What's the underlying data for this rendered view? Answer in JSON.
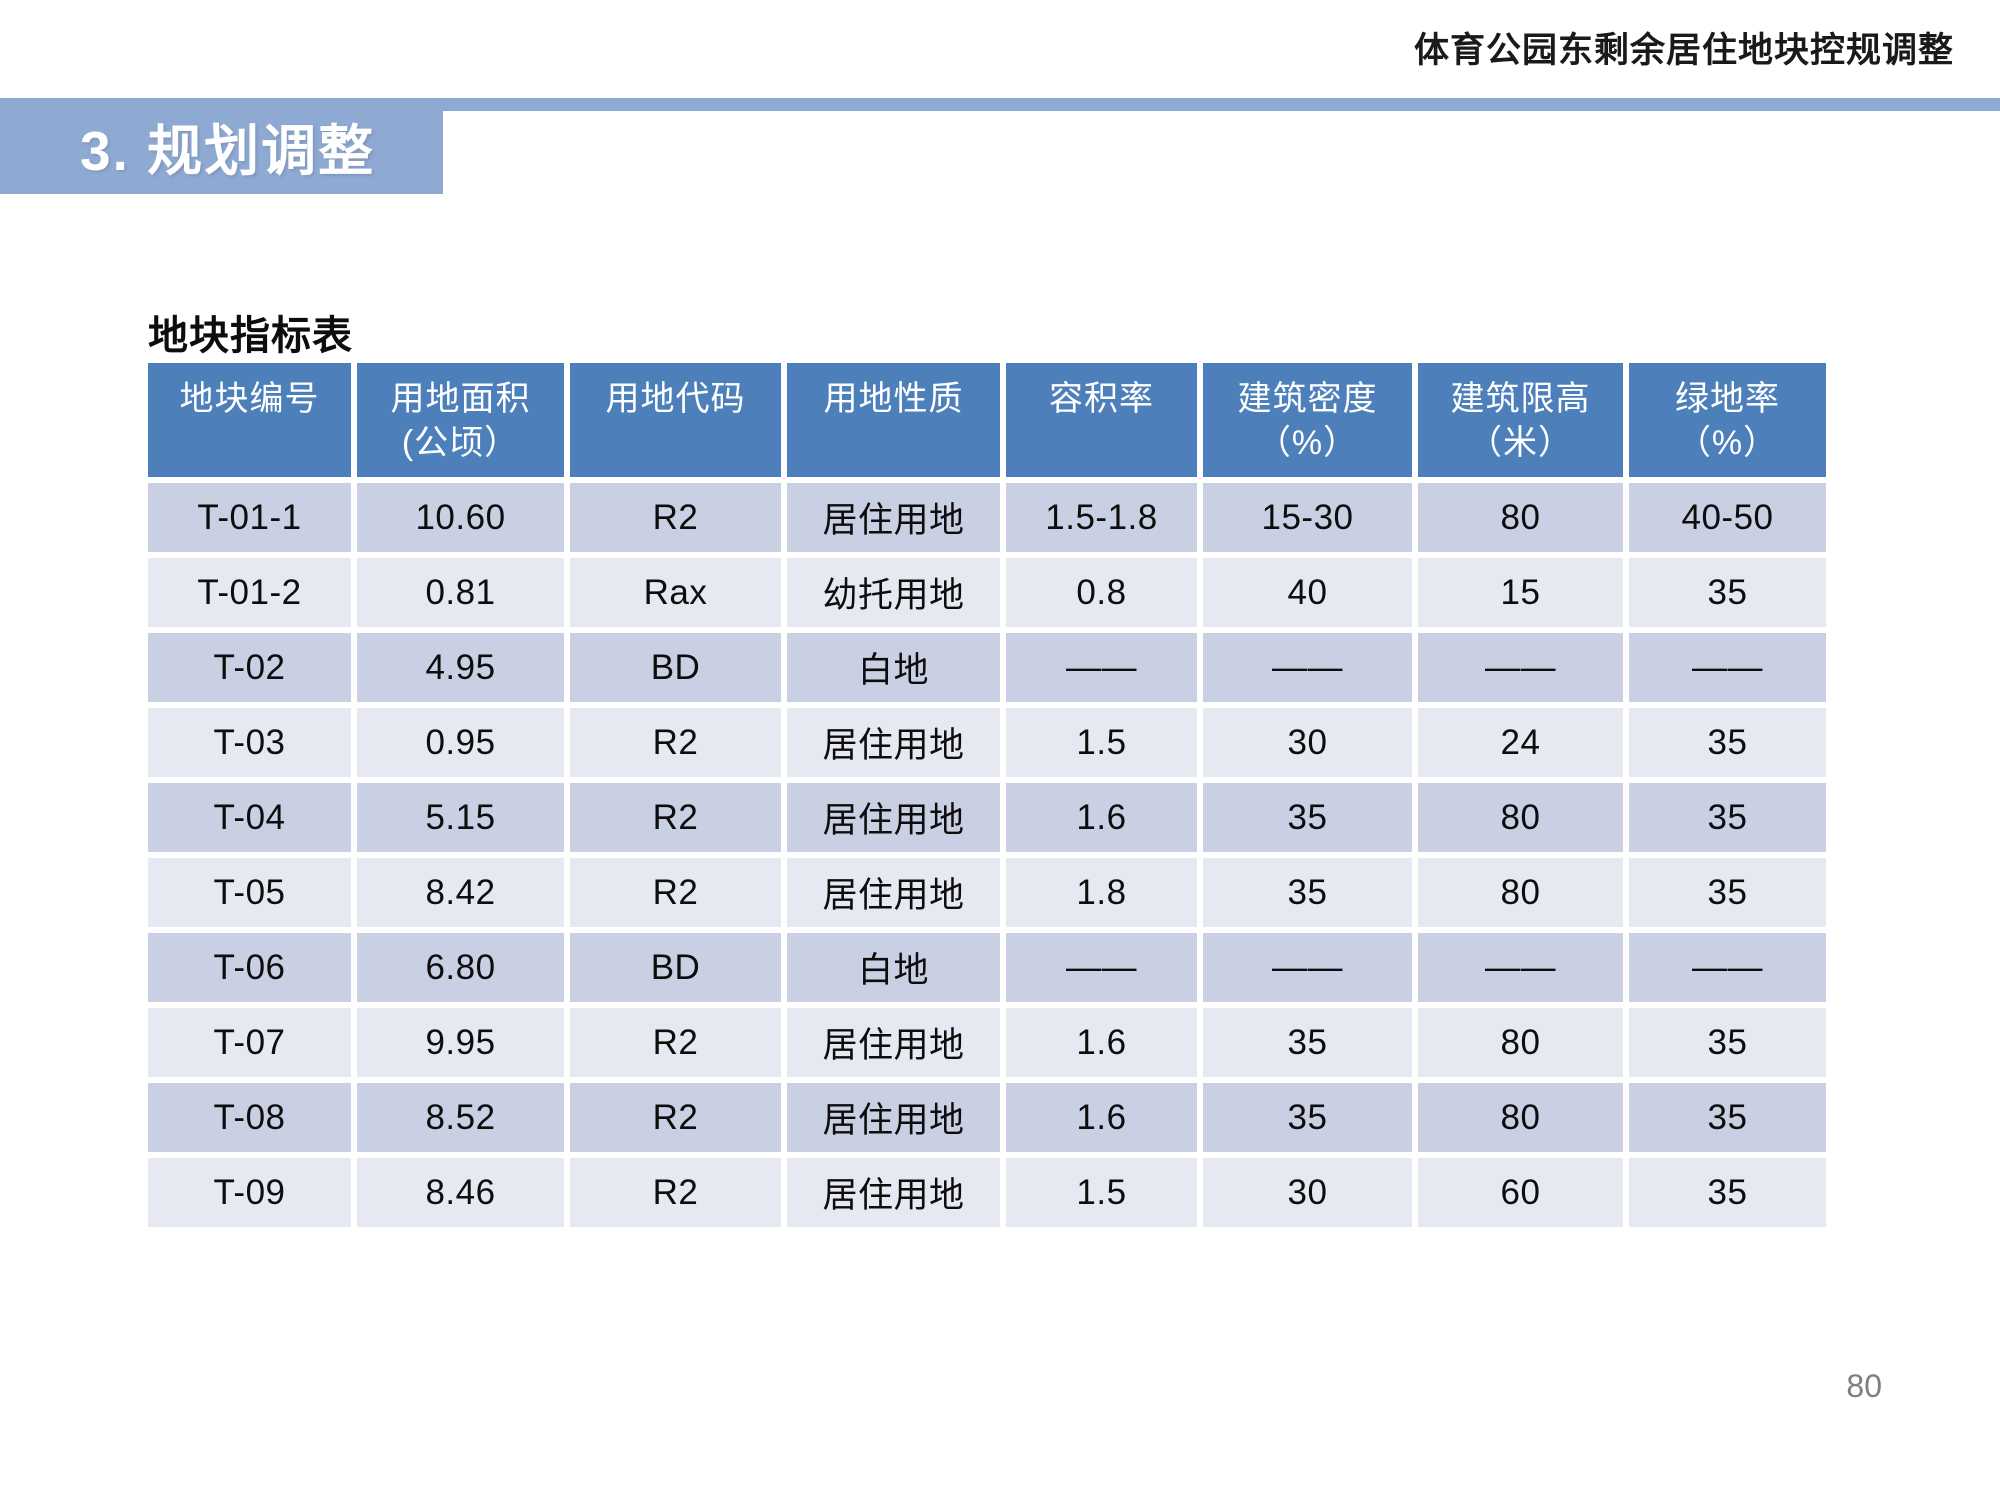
{
  "page": {
    "header_title": "体育公园东剩余居住地块控规调整",
    "section_title": "3. 规划调整",
    "table_title": "地块指标表",
    "page_number": "80"
  },
  "colors": {
    "banner_blue": "#8ea9d2",
    "header_blue": "#4d80bb",
    "row_dark": "#cad0e4",
    "row_light": "#e6e9f2"
  },
  "table": {
    "columns": [
      [
        "地块编号"
      ],
      [
        "用地面积",
        "(公顷）"
      ],
      [
        "用地代码"
      ],
      [
        "用地性质"
      ],
      [
        "容积率"
      ],
      [
        "建筑密度",
        "（%）"
      ],
      [
        "建筑限高",
        "（米）"
      ],
      [
        "绿地率",
        "（%）"
      ]
    ],
    "rows": [
      [
        "T-01-1",
        "10.60",
        "R2",
        "居住用地",
        "1.5-1.8",
        "15-30",
        "80",
        "40-50"
      ],
      [
        "T-01-2",
        "0.81",
        "Rax",
        "幼托用地",
        "0.8",
        "40",
        "15",
        "35"
      ],
      [
        "T-02",
        "4.95",
        "BD",
        "白地",
        "——",
        "——",
        "——",
        "——"
      ],
      [
        "T-03",
        "0.95",
        "R2",
        "居住用地",
        "1.5",
        "30",
        "24",
        "35"
      ],
      [
        "T-04",
        "5.15",
        "R2",
        "居住用地",
        "1.6",
        "35",
        "80",
        "35"
      ],
      [
        "T-05",
        "8.42",
        "R2",
        "居住用地",
        "1.8",
        "35",
        "80",
        "35"
      ],
      [
        "T-06",
        "6.80",
        "BD",
        "白地",
        "——",
        "——",
        "——",
        "——"
      ],
      [
        "T-07",
        "9.95",
        "R2",
        "居住用地",
        "1.6",
        "35",
        "80",
        "35"
      ],
      [
        "T-08",
        "8.52",
        "R2",
        "居住用地",
        "1.6",
        "35",
        "80",
        "35"
      ],
      [
        "T-09",
        "8.46",
        "R2",
        "居住用地",
        "1.5",
        "30",
        "60",
        "35"
      ]
    ]
  }
}
